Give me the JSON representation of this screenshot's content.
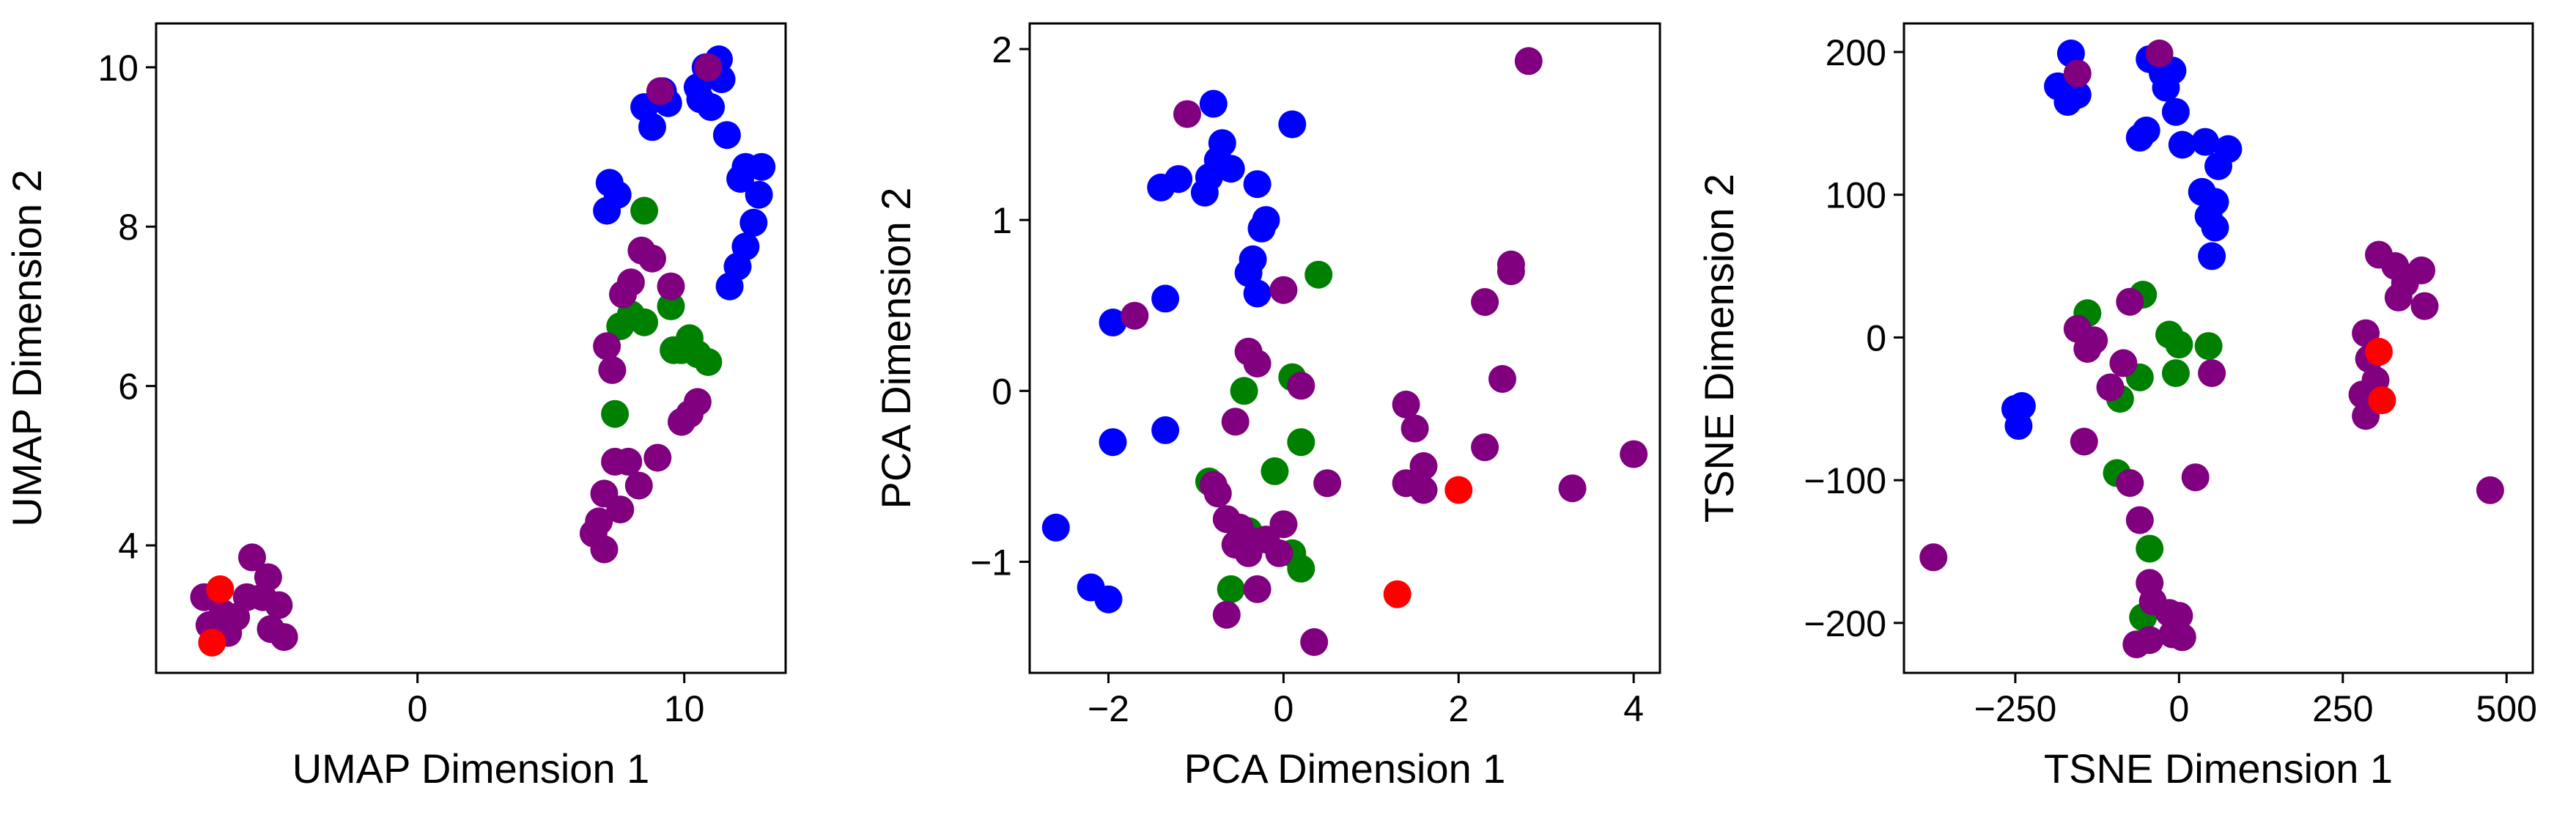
{
  "colors": {
    "blue": "#0000ff",
    "green": "#008000",
    "purple": "#800080",
    "red": "#ff0000"
  },
  "chart_data": [
    {
      "type": "scatter",
      "title": "",
      "xlabel": "UMAP Dimension 1",
      "ylabel": "UMAP Dimension 2",
      "xlim": [
        -9.8,
        13.8
      ],
      "ylim": [
        2.4,
        10.55
      ],
      "xticks": [
        0,
        10
      ],
      "xtick_labels": [
        "0",
        "10"
      ],
      "yticks": [
        4,
        6,
        8,
        10
      ],
      "ytick_labels": [
        "4",
        "6",
        "8",
        "10"
      ],
      "grid": false,
      "legend": "none",
      "series": [
        {
          "color": "blue",
          "points": [
            [
              11.3,
              10.1
            ],
            [
              10.8,
              10.0
            ],
            [
              9.2,
              9.7
            ],
            [
              11.4,
              9.85
            ],
            [
              10.5,
              9.75
            ],
            [
              8.5,
              9.5
            ],
            [
              10.6,
              9.6
            ],
            [
              9.4,
              9.55
            ],
            [
              11.0,
              9.5
            ],
            [
              8.8,
              9.25
            ],
            [
              11.6,
              9.15
            ],
            [
              12.3,
              8.75
            ],
            [
              12.9,
              8.75
            ],
            [
              12.8,
              8.4
            ],
            [
              12.1,
              8.6
            ],
            [
              12.6,
              8.05
            ],
            [
              12.3,
              7.75
            ],
            [
              12.0,
              7.5
            ],
            [
              11.7,
              7.25
            ],
            [
              7.2,
              8.55
            ],
            [
              7.5,
              8.4
            ],
            [
              7.1,
              8.2
            ]
          ]
        },
        {
          "color": "green",
          "points": [
            [
              8.5,
              8.2
            ],
            [
              7.6,
              6.75
            ],
            [
              8.0,
              6.9
            ],
            [
              8.5,
              6.8
            ],
            [
              9.5,
              7.0
            ],
            [
              10.2,
              6.6
            ],
            [
              9.9,
              6.45
            ],
            [
              9.6,
              6.45
            ],
            [
              10.5,
              6.4
            ],
            [
              10.9,
              6.3
            ],
            [
              7.4,
              5.65
            ]
          ]
        },
        {
          "color": "purple",
          "points": [
            [
              9.1,
              9.7
            ],
            [
              10.9,
              10.0
            ],
            [
              8.4,
              7.7
            ],
            [
              8.8,
              7.6
            ],
            [
              8.0,
              7.3
            ],
            [
              9.5,
              7.25
            ],
            [
              7.7,
              7.15
            ],
            [
              7.1,
              6.5
            ],
            [
              7.3,
              6.2
            ],
            [
              10.2,
              5.65
            ],
            [
              10.5,
              5.8
            ],
            [
              9.9,
              5.55
            ],
            [
              7.4,
              5.05
            ],
            [
              7.9,
              5.05
            ],
            [
              9.0,
              5.1
            ],
            [
              8.3,
              4.75
            ],
            [
              7.0,
              4.65
            ],
            [
              7.6,
              4.45
            ],
            [
              6.8,
              4.3
            ],
            [
              6.6,
              4.15
            ],
            [
              7.0,
              3.95
            ],
            [
              -6.2,
              3.85
            ],
            [
              -5.6,
              3.6
            ],
            [
              -6.4,
              3.35
            ],
            [
              -5.8,
              3.35
            ],
            [
              -5.2,
              3.25
            ],
            [
              -8.0,
              3.35
            ],
            [
              -7.3,
              3.15
            ],
            [
              -6.8,
              3.1
            ],
            [
              -7.8,
              3.0
            ],
            [
              -5.5,
              2.95
            ],
            [
              -7.1,
              2.9
            ],
            [
              -5.0,
              2.85
            ]
          ]
        },
        {
          "color": "red",
          "points": [
            [
              -7.4,
              3.45
            ],
            [
              -7.7,
              2.78
            ]
          ]
        }
      ]
    },
    {
      "type": "scatter",
      "title": "",
      "xlabel": "PCA Dimension 1",
      "ylabel": "PCA Dimension 2",
      "xlim": [
        -2.9,
        4.3
      ],
      "ylim": [
        -1.65,
        2.15
      ],
      "xticks": [
        -2,
        0,
        2,
        4
      ],
      "xtick_labels": [
        "−2",
        "0",
        "2",
        "4"
      ],
      "yticks": [
        -1,
        0,
        1,
        2
      ],
      "ytick_labels": [
        "−1",
        "0",
        "1",
        "2"
      ],
      "grid": false,
      "legend": "none",
      "series": [
        {
          "color": "blue",
          "points": [
            [
              -0.8,
              1.68
            ],
            [
              0.1,
              1.56
            ],
            [
              -0.7,
              1.45
            ],
            [
              -0.75,
              1.35
            ],
            [
              -0.6,
              1.3
            ],
            [
              -0.85,
              1.25
            ],
            [
              -1.2,
              1.24
            ],
            [
              -1.4,
              1.19
            ],
            [
              -0.3,
              1.21
            ],
            [
              -0.9,
              1.16
            ],
            [
              -0.2,
              1.0
            ],
            [
              -0.25,
              0.95
            ],
            [
              -0.35,
              0.77
            ],
            [
              -0.4,
              0.69
            ],
            [
              -0.3,
              0.57
            ],
            [
              -1.35,
              0.54
            ],
            [
              -1.95,
              0.4
            ],
            [
              -1.95,
              -0.3
            ],
            [
              -1.35,
              -0.23
            ],
            [
              -2.6,
              -0.8
            ],
            [
              -2.2,
              -1.15
            ],
            [
              -2.0,
              -1.22
            ]
          ]
        },
        {
          "color": "green",
          "points": [
            [
              0.4,
              0.68
            ],
            [
              0.1,
              0.08
            ],
            [
              -0.45,
              0.0
            ],
            [
              0.2,
              -0.3
            ],
            [
              -0.1,
              -0.47
            ],
            [
              -0.85,
              -0.53
            ],
            [
              -0.4,
              -0.82
            ],
            [
              0.1,
              -0.95
            ],
            [
              0.2,
              -1.04
            ],
            [
              -0.6,
              -1.16
            ]
          ]
        },
        {
          "color": "purple",
          "points": [
            [
              2.8,
              1.93
            ],
            [
              -1.1,
              1.62
            ],
            [
              -1.7,
              0.44
            ],
            [
              -0.0,
              0.59
            ],
            [
              -0.4,
              0.23
            ],
            [
              -0.3,
              0.16
            ],
            [
              0.2,
              0.03
            ],
            [
              -0.55,
              -0.18
            ],
            [
              2.6,
              0.74
            ],
            [
              2.6,
              0.7
            ],
            [
              2.3,
              0.52
            ],
            [
              2.5,
              0.07
            ],
            [
              1.4,
              -0.08
            ],
            [
              1.5,
              -0.22
            ],
            [
              2.3,
              -0.33
            ],
            [
              4.0,
              -0.37
            ],
            [
              1.6,
              -0.44
            ],
            [
              1.4,
              -0.54
            ],
            [
              1.6,
              -0.58
            ],
            [
              3.3,
              -0.57
            ],
            [
              -0.8,
              -0.55
            ],
            [
              -0.75,
              -0.6
            ],
            [
              0.5,
              -0.54
            ],
            [
              -0.65,
              -0.75
            ],
            [
              -0.5,
              -0.8
            ],
            [
              -0.35,
              -0.88
            ],
            [
              -0.55,
              -0.9
            ],
            [
              -0.2,
              -0.87
            ],
            [
              -0.4,
              -0.95
            ],
            [
              0.0,
              -0.78
            ],
            [
              -0.05,
              -0.95
            ],
            [
              -0.3,
              -1.16
            ],
            [
              -0.65,
              -1.31
            ],
            [
              0.35,
              -1.47
            ]
          ]
        },
        {
          "color": "red",
          "points": [
            [
              2.0,
              -0.58
            ],
            [
              1.3,
              -1.19
            ]
          ]
        }
      ]
    },
    {
      "type": "scatter",
      "title": "",
      "xlabel": "TSNE Dimension 1",
      "ylabel": "TSNE Dimension 2",
      "xlim": [
        -420,
        540
      ],
      "ylim": [
        -235,
        220
      ],
      "xticks": [
        -250,
        0,
        250,
        500
      ],
      "xtick_labels": [
        "−250",
        "0",
        "250",
        "500"
      ],
      "yticks": [
        -200,
        -100,
        0,
        100,
        200
      ],
      "ytick_labels": [
        "−200",
        "−100",
        "0",
        "100",
        "200"
      ],
      "grid": false,
      "legend": "none",
      "series": [
        {
          "color": "blue",
          "points": [
            [
              -165,
              199
            ],
            [
              -185,
              176
            ],
            [
              -170,
              165
            ],
            [
              -155,
              170
            ],
            [
              -45,
              195
            ],
            [
              -25,
              185
            ],
            [
              -10,
              187
            ],
            [
              -20,
              175
            ],
            [
              -5,
              158
            ],
            [
              -50,
              145
            ],
            [
              -60,
              140
            ],
            [
              5,
              135
            ],
            [
              40,
              137
            ],
            [
              75,
              132
            ],
            [
              60,
              120
            ],
            [
              35,
              102
            ],
            [
              55,
              95
            ],
            [
              45,
              85
            ],
            [
              55,
              77
            ],
            [
              50,
              57
            ],
            [
              -240,
              -48
            ],
            [
              -250,
              -50
            ],
            [
              -245,
              -62
            ]
          ]
        },
        {
          "color": "green",
          "points": [
            [
              -140,
              17
            ],
            [
              -55,
              30
            ],
            [
              -15,
              2
            ],
            [
              0,
              -5
            ],
            [
              45,
              -6
            ],
            [
              -5,
              -25
            ],
            [
              -60,
              -28
            ],
            [
              -90,
              -43
            ],
            [
              -95,
              -95
            ],
            [
              -45,
              -148
            ],
            [
              -55,
              -196
            ]
          ]
        },
        {
          "color": "purple",
          "points": [
            [
              -30,
              199
            ],
            [
              -155,
              185
            ],
            [
              -155,
              6
            ],
            [
              -130,
              -2
            ],
            [
              -140,
              -8
            ],
            [
              -75,
              25
            ],
            [
              -85,
              -18
            ],
            [
              -105,
              -35
            ],
            [
              -145,
              -73
            ],
            [
              50,
              -25
            ],
            [
              -75,
              -102
            ],
            [
              -60,
              -128
            ],
            [
              -45,
              -172
            ],
            [
              -40,
              -185
            ],
            [
              -15,
              -193
            ],
            [
              0,
              -195
            ],
            [
              -10,
              -208
            ],
            [
              5,
              -210
            ],
            [
              -45,
              -212
            ],
            [
              -65,
              -215
            ],
            [
              25,
              -98
            ],
            [
              -375,
              -154
            ],
            [
              305,
              58
            ],
            [
              330,
              50
            ],
            [
              370,
              47
            ],
            [
              345,
              38
            ],
            [
              335,
              28
            ],
            [
              375,
              22
            ],
            [
              285,
              3
            ],
            [
              290,
              -15
            ],
            [
              280,
              -40
            ],
            [
              300,
              -30
            ],
            [
              285,
              -55
            ],
            [
              475,
              -107
            ]
          ]
        },
        {
          "color": "red",
          "points": [
            [
              305,
              -10
            ],
            [
              310,
              -44
            ]
          ]
        }
      ]
    }
  ]
}
